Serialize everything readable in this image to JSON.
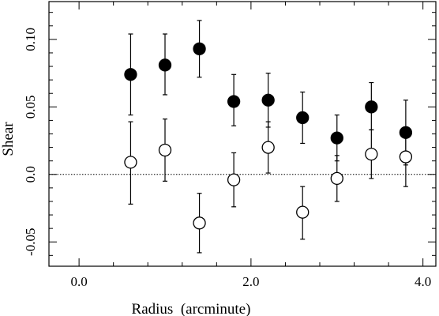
{
  "chart_data": {
    "type": "scatter",
    "xlabel": "Radius  (arcminute)",
    "ylabel": "Shear",
    "xlim": [
      -0.35,
      4.15
    ],
    "ylim": [
      -0.068,
      0.128
    ],
    "x_ticks": [
      0.0,
      2.0,
      4.0
    ],
    "x_tick_labels": [
      "0.0",
      "2.0",
      "4.0"
    ],
    "y_ticks": [
      -0.05,
      0.0,
      0.05,
      0.1
    ],
    "y_tick_labels": [
      "-0.05",
      "0.0",
      "0.05",
      "0.10"
    ],
    "reference_line": {
      "y": 0.0,
      "style": "dotted"
    },
    "series": [
      {
        "marker": "filled-circle",
        "points": [
          {
            "x": 0.6,
            "y": 0.074,
            "err_low": 0.044,
            "err_high": 0.104
          },
          {
            "x": 1.0,
            "y": 0.081,
            "err_low": 0.059,
            "err_high": 0.104
          },
          {
            "x": 1.4,
            "y": 0.093,
            "err_low": 0.072,
            "err_high": 0.114
          },
          {
            "x": 1.8,
            "y": 0.054,
            "err_low": 0.036,
            "err_high": 0.074
          },
          {
            "x": 2.2,
            "y": 0.055,
            "err_low": 0.035,
            "err_high": 0.075
          },
          {
            "x": 2.6,
            "y": 0.042,
            "err_low": 0.023,
            "err_high": 0.061
          },
          {
            "x": 3.0,
            "y": 0.027,
            "err_low": 0.01,
            "err_high": 0.044
          },
          {
            "x": 3.4,
            "y": 0.05,
            "err_low": 0.033,
            "err_high": 0.068
          },
          {
            "x": 3.8,
            "y": 0.031,
            "err_low": 0.007,
            "err_high": 0.055
          }
        ]
      },
      {
        "marker": "open-circle",
        "points": [
          {
            "x": 0.6,
            "y": 0.009,
            "err_low": -0.022,
            "err_high": 0.039
          },
          {
            "x": 1.0,
            "y": 0.018,
            "err_low": -0.005,
            "err_high": 0.041
          },
          {
            "x": 1.4,
            "y": -0.036,
            "err_low": -0.058,
            "err_high": -0.014
          },
          {
            "x": 1.8,
            "y": -0.004,
            "err_low": -0.024,
            "err_high": 0.016
          },
          {
            "x": 2.2,
            "y": 0.02,
            "err_low": 0.001,
            "err_high": 0.039
          },
          {
            "x": 2.6,
            "y": -0.028,
            "err_low": -0.048,
            "err_high": -0.009
          },
          {
            "x": 3.0,
            "y": -0.003,
            "err_low": -0.02,
            "err_high": 0.014
          },
          {
            "x": 3.4,
            "y": 0.015,
            "err_low": -0.003,
            "err_high": 0.033
          },
          {
            "x": 3.8,
            "y": 0.013,
            "err_low": -0.009,
            "err_high": 0.035
          }
        ]
      }
    ]
  }
}
